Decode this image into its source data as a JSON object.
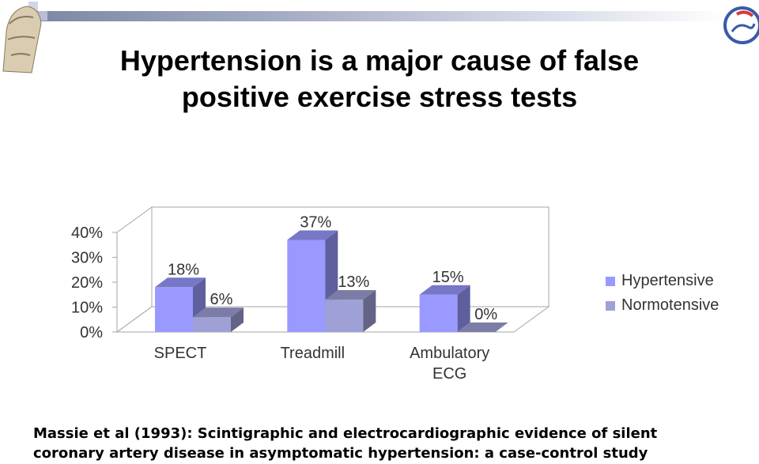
{
  "title": {
    "line1": "Hypertension is a major cause of false",
    "line2": "positive exercise stress tests"
  },
  "caption": {
    "line1": "Massie et al (1993): Scintigraphic and electrocardiographic evidence of silent",
    "line2": "coronary artery disease in asymptomatic hypertension: a case-control study"
  },
  "chart_data": {
    "type": "bar",
    "style": "3d-clustered",
    "categories": [
      [
        "SPECT"
      ],
      [
        "Treadmill"
      ],
      [
        "Ambulatory",
        "ECG"
      ]
    ],
    "series": [
      {
        "name": "Hypertensive",
        "values": [
          18,
          37,
          15
        ],
        "labels": [
          "18%",
          "37%",
          "15%"
        ],
        "color": "#9999ff"
      },
      {
        "name": "Normotensive",
        "values": [
          6,
          13,
          0
        ],
        "labels": [
          "6%",
          "13%",
          "0%"
        ],
        "color": "#9fa0d6"
      }
    ],
    "yticks": [
      "0%",
      "10%",
      "20%",
      "30%",
      "40%"
    ],
    "ylim": [
      0,
      40
    ],
    "legend_position": "right",
    "grid": false
  },
  "colors": {
    "top_bar": "#7d86a3",
    "axis": "#a6a6a6"
  }
}
